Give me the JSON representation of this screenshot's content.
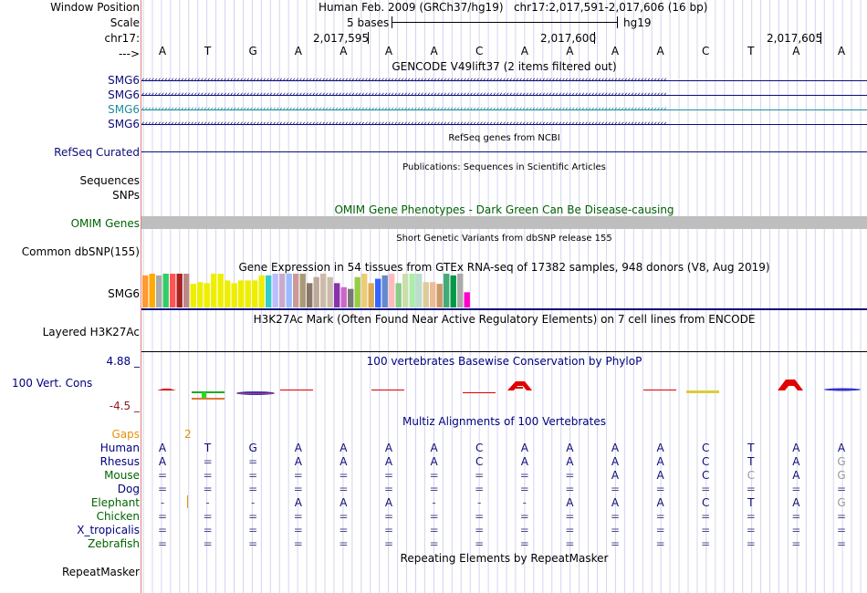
{
  "header": {
    "window_position_label": "Window Position",
    "scale_label": "Scale",
    "chrom_label": "chr17:",
    "strand_label": "--->",
    "assembly_title": "Human Feb. 2009 (GRCh37/hg19)   chr17:2,017,591-2,017,606 (16 bp)",
    "scale_text": "5 bases",
    "db_text": "hg19",
    "positions": [
      "2,017,595",
      "2,017,600",
      "2,017,605"
    ]
  },
  "bases": [
    "A",
    "T",
    "G",
    "A",
    "A",
    "A",
    "A",
    "C",
    "A",
    "A",
    "A",
    "A",
    "C",
    "T",
    "A",
    "A"
  ],
  "gencode": {
    "title": "GENCODE V49lift37 (2 items filtered out)",
    "genes": [
      {
        "label": "SMG6",
        "color": "#0c0c78"
      },
      {
        "label": "SMG6",
        "color": "#0c0c78"
      },
      {
        "label": "SMG6",
        "color": "#1e8ca0"
      },
      {
        "label": "SMG6",
        "color": "#0c0c78"
      }
    ]
  },
  "refseq": {
    "title": "RefSeq genes from NCBI",
    "label": "RefSeq Curated"
  },
  "publications": {
    "title": "Publications: Sequences in Scientific Articles",
    "label": "Sequences"
  },
  "snps_label": "SNPs",
  "omim": {
    "title": "OMIM Gene Phenotypes - Dark Green Can Be Disease-causing",
    "label": "OMIM Genes",
    "bar_color": "#bebebe"
  },
  "dbsnp": {
    "title": "Short Genetic Variants from dbSNP release 155",
    "label": "Common dbSNP(155)"
  },
  "gtex": {
    "title": "Gene Expression in 54 tissues from GTEx RNA-seq of 17382 samples, 948 donors (V8, Aug 2019)",
    "label": "SMG6",
    "bars": [
      {
        "v": 0.95,
        "c": "#ff9933"
      },
      {
        "v": 1.0,
        "c": "#ffaa00"
      },
      {
        "v": 0.95,
        "c": "#aaaaaa"
      },
      {
        "v": 1.0,
        "c": "#33cc66"
      },
      {
        "v": 1.0,
        "c": "#ff5555"
      },
      {
        "v": 1.0,
        "c": "#aa2222"
      },
      {
        "v": 1.0,
        "c": "#bb8888"
      },
      {
        "v": 0.7,
        "c": "#eeee00"
      },
      {
        "v": 0.75,
        "c": "#eeee00"
      },
      {
        "v": 0.72,
        "c": "#eeee00"
      },
      {
        "v": 1.0,
        "c": "#eeee00"
      },
      {
        "v": 1.0,
        "c": "#eeee00"
      },
      {
        "v": 0.8,
        "c": "#eeee00"
      },
      {
        "v": 0.72,
        "c": "#eeee00"
      },
      {
        "v": 0.8,
        "c": "#eeee00"
      },
      {
        "v": 0.8,
        "c": "#eeee00"
      },
      {
        "v": 0.8,
        "c": "#eeee00"
      },
      {
        "v": 0.95,
        "c": "#eeee00"
      },
      {
        "v": 0.95,
        "c": "#33cccc"
      },
      {
        "v": 1.0,
        "c": "#bbbbff"
      },
      {
        "v": 1.0,
        "c": "#ccaacc"
      },
      {
        "v": 1.0,
        "c": "#99bbff"
      },
      {
        "v": 1.0,
        "c": "#cc9999"
      },
      {
        "v": 1.0,
        "c": "#aa9977"
      },
      {
        "v": 0.72,
        "c": "#887766"
      },
      {
        "v": 0.9,
        "c": "#bbaa99"
      },
      {
        "v": 1.0,
        "c": "#ccbbaa"
      },
      {
        "v": 0.9,
        "c": "#ccbbaa"
      },
      {
        "v": 0.72,
        "c": "#8833aa"
      },
      {
        "v": 0.6,
        "c": "#cc66cc"
      },
      {
        "v": 0.55,
        "c": "#777777"
      },
      {
        "v": 0.9,
        "c": "#99cc44"
      },
      {
        "v": 1.0,
        "c": "#eecc77"
      },
      {
        "v": 0.72,
        "c": "#ddaa55"
      },
      {
        "v": 0.85,
        "c": "#3366ff"
      },
      {
        "v": 0.95,
        "c": "#6688cc"
      },
      {
        "v": 1.0,
        "c": "#ffbbbb"
      },
      {
        "v": 0.72,
        "c": "#88cc88"
      },
      {
        "v": 1.0,
        "c": "#ccddaa"
      },
      {
        "v": 1.0,
        "c": "#aaeeaa"
      },
      {
        "v": 1.0,
        "c": "#bbddcc"
      },
      {
        "v": 0.75,
        "c": "#ddcc99"
      },
      {
        "v": 0.75,
        "c": "#eebb99"
      },
      {
        "v": 0.7,
        "c": "#cc9966"
      },
      {
        "v": 1.0,
        "c": "#44aa77"
      },
      {
        "v": 0.95,
        "c": "#009944"
      },
      {
        "v": 1.0,
        "c": "#aaaaaa"
      },
      {
        "v": 0.45,
        "c": "#ff00cc"
      }
    ]
  },
  "h3k27ac": {
    "title": "H3K27Ac Mark (Often Found Near Active Regulatory Elements) on 7 cell lines from ENCODE",
    "label": "Layered H3K27Ac"
  },
  "phylop": {
    "title": "100 vertebrates Basewise Conservation by PhyloP",
    "label": "100 Vert. Cons",
    "max_label": "4.88 _",
    "min_label": "-4.5 _"
  },
  "multiz": {
    "title": "Multiz Alignments of 100 Vertebrates",
    "gaps_label": "Gaps",
    "gaps_value": "2",
    "species": [
      {
        "name": "Human",
        "color": "#000080",
        "row": [
          "A",
          "T",
          "G",
          "A",
          "A",
          "A",
          "A",
          "C",
          "A",
          "A",
          "A",
          "A",
          "C",
          "T",
          "A",
          "A"
        ]
      },
      {
        "name": "Rhesus",
        "color": "#000080",
        "row": [
          "A",
          "=",
          "=",
          "A",
          "A",
          "A",
          "A",
          "C",
          "A",
          "A",
          "A",
          "A",
          "C",
          "T",
          "A",
          "G"
        ]
      },
      {
        "name": "Mouse",
        "color": "#006400",
        "row": [
          "=",
          "=",
          "=",
          "=",
          "=",
          "=",
          "=",
          "=",
          "=",
          "=",
          "A",
          "A",
          "C",
          "C",
          "A",
          "G"
        ]
      },
      {
        "name": "Dog",
        "color": "#000080",
        "row": [
          "=",
          "=",
          "=",
          "=",
          "=",
          "=",
          "=",
          "=",
          "=",
          "=",
          "=",
          "=",
          "=",
          "=",
          "=",
          "="
        ]
      },
      {
        "name": "Elephant",
        "color": "#006400",
        "row": [
          "-",
          "-",
          "-",
          "A",
          "A",
          "A",
          "-",
          "-",
          "-",
          "A",
          "A",
          "A",
          "C",
          "T",
          "A",
          "G"
        ]
      },
      {
        "name": "Chicken",
        "color": "#006400",
        "row": [
          "=",
          "=",
          "=",
          "=",
          "=",
          "=",
          "=",
          "=",
          "=",
          "=",
          "=",
          "=",
          "=",
          "=",
          "=",
          "="
        ]
      },
      {
        "name": "X_tropicalis",
        "color": "#000080",
        "row": [
          "=",
          "=",
          "=",
          "=",
          "=",
          "=",
          "=",
          "=",
          "=",
          "=",
          "=",
          "=",
          "=",
          "=",
          "=",
          "="
        ]
      },
      {
        "name": "Zebrafish",
        "color": "#006400",
        "row": [
          "=",
          "=",
          "=",
          "=",
          "=",
          "=",
          "=",
          "=",
          "=",
          "=",
          "=",
          "=",
          "=",
          "=",
          "=",
          "="
        ]
      }
    ]
  },
  "repeatmasker": {
    "title": "Repeating Elements by RepeatMasker",
    "label": "RepeatMasker"
  }
}
